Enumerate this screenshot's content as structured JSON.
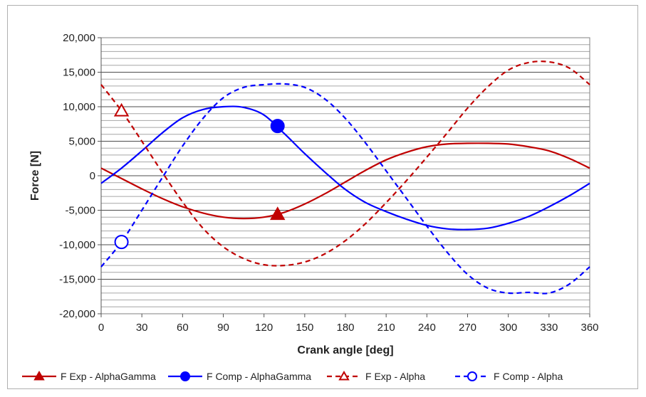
{
  "chart_data": {
    "type": "line",
    "title": "",
    "xlabel": "Crank angle [deg]",
    "ylabel": "Force [N]",
    "xlim": [
      0,
      360
    ],
    "ylim": [
      -20000,
      20000
    ],
    "xticks": [
      0,
      30,
      60,
      90,
      120,
      150,
      180,
      210,
      240,
      270,
      300,
      330,
      360
    ],
    "yticks": [
      -20000,
      -15000,
      -10000,
      -5000,
      0,
      5000,
      10000,
      15000,
      20000
    ],
    "xtick_labels": [
      "0",
      "30",
      "60",
      "90",
      "120",
      "150",
      "180",
      "210",
      "240",
      "270",
      "300",
      "330",
      "360"
    ],
    "ytick_labels": [
      "-20,000",
      "-15,000",
      "-10,000",
      "-5,000",
      "0",
      "5,000",
      "10,000",
      "15,000",
      "20,000"
    ],
    "grid": true,
    "minor_grid_step": 1000,
    "legend_position": "bottom",
    "series": [
      {
        "name": "F Exp - AlphaGamma",
        "color": "#c00000",
        "dash": false,
        "marker": "filled-triangle",
        "x": [
          0,
          15,
          30,
          45,
          60,
          75,
          90,
          105,
          120,
          135,
          150,
          165,
          180,
          195,
          210,
          225,
          240,
          255,
          270,
          285,
          300,
          315,
          330,
          345,
          360
        ],
        "y": [
          1100,
          -400,
          -1900,
          -3300,
          -4500,
          -5400,
          -6000,
          -6200,
          -6000,
          -5300,
          -4100,
          -2600,
          -900,
          800,
          2300,
          3400,
          4200,
          4600,
          4700,
          4700,
          4600,
          4200,
          3600,
          2500,
          1100
        ],
        "marker_points": [
          {
            "x": 130,
            "y": -5600
          }
        ]
      },
      {
        "name": "F Comp - AlphaGamma",
        "color": "#0000ff",
        "dash": false,
        "marker": "filled-circle",
        "x": [
          0,
          15,
          30,
          45,
          60,
          75,
          90,
          105,
          120,
          135,
          150,
          165,
          180,
          195,
          210,
          225,
          240,
          255,
          270,
          285,
          300,
          315,
          330,
          345,
          360
        ],
        "y": [
          -1100,
          1100,
          3600,
          6200,
          8400,
          9600,
          10000,
          9900,
          8800,
          6100,
          3200,
          500,
          -2000,
          -3900,
          -5200,
          -6300,
          -7200,
          -7700,
          -7800,
          -7600,
          -6900,
          -5900,
          -4500,
          -2900,
          -1100
        ],
        "marker_points": [
          {
            "x": 130,
            "y": 7200
          }
        ]
      },
      {
        "name": "F Exp - Alpha",
        "color": "#c00000",
        "dash": true,
        "marker": "open-triangle",
        "x": [
          0,
          15,
          30,
          45,
          60,
          75,
          90,
          105,
          120,
          135,
          150,
          165,
          180,
          195,
          210,
          225,
          240,
          255,
          270,
          285,
          300,
          315,
          330,
          345,
          360
        ],
        "y": [
          13200,
          9400,
          5000,
          500,
          -3800,
          -7600,
          -10300,
          -12000,
          -12900,
          -13000,
          -12500,
          -11300,
          -9400,
          -6900,
          -3900,
          -700,
          2700,
          6200,
          9800,
          12900,
          15300,
          16400,
          16500,
          15600,
          13200
        ],
        "marker_points": [
          {
            "x": 15,
            "y": 9400
          }
        ]
      },
      {
        "name": "F Comp - Alpha",
        "color": "#0000ff",
        "dash": true,
        "marker": "open-circle",
        "x": [
          0,
          15,
          30,
          45,
          60,
          75,
          90,
          105,
          120,
          135,
          150,
          165,
          180,
          195,
          210,
          225,
          240,
          255,
          270,
          285,
          300,
          315,
          330,
          345,
          360
        ],
        "y": [
          -13200,
          -9600,
          -5000,
          -300,
          4300,
          8300,
          11300,
          12800,
          13200,
          13300,
          12800,
          11100,
          8300,
          4700,
          700,
          -3300,
          -7300,
          -11100,
          -14300,
          -16300,
          -17000,
          -16900,
          -17000,
          -15700,
          -13200
        ],
        "marker_points": [
          {
            "x": 15,
            "y": -9600
          }
        ]
      }
    ]
  }
}
